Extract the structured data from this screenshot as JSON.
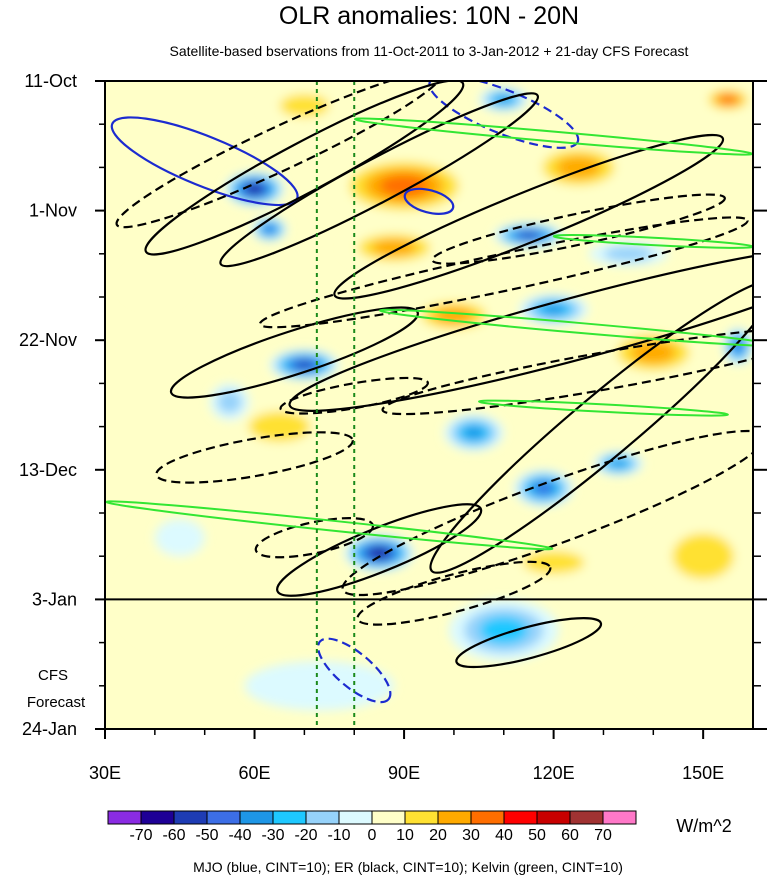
{
  "chart_data": {
    "type": "heatmap",
    "title": "OLR anomalies: 10N - 20N",
    "subtitle": "Satellite-based bservations from 11-Oct-2011 to 3-Jan-2012 + 21-day CFS Forecast",
    "x_ticks": [
      {
        "value": 30,
        "label": "30E"
      },
      {
        "value": 60,
        "label": "60E"
      },
      {
        "value": 90,
        "label": "90E"
      },
      {
        "value": 120,
        "label": "120E"
      },
      {
        "value": 150,
        "label": "150E"
      }
    ],
    "xlim": [
      30,
      160
    ],
    "y_ticks": [
      {
        "day": 0,
        "label": "11-Oct"
      },
      {
        "day": 21,
        "label": "1-Nov"
      },
      {
        "day": 42,
        "label": "22-Nov"
      },
      {
        "day": 63,
        "label": "13-Dec"
      },
      {
        "day": 84,
        "label": "3-Jan"
      },
      {
        "day": 105,
        "label": "24-Jan"
      }
    ],
    "ylim_days": [
      0,
      105
    ],
    "forecast_start_day": 84,
    "forecast_label": [
      "CFS",
      "Forecast"
    ],
    "reference_lons": [
      72.5,
      80
    ],
    "colorbar": {
      "labels": [
        "-70",
        "-60",
        "-50",
        "-40",
        "-30",
        "-20",
        "-10",
        "0",
        "10",
        "20",
        "30",
        "40",
        "50",
        "60",
        "70"
      ],
      "colors": [
        "#8a2be2",
        "#1e0096",
        "#1e3cb4",
        "#3c6ee6",
        "#1e96e6",
        "#1ec8ff",
        "#96d2fa",
        "#dcfaff",
        "#ffffc8",
        "#ffe132",
        "#ffaa00",
        "#ff6e00",
        "#ff0000",
        "#c80000",
        "#a03232",
        "#ff78c8"
      ],
      "units": "W/m^2"
    },
    "olr_features": [
      {
        "lon": 60,
        "day": 17.5,
        "rlon": 6,
        "rday": 2.8,
        "value": -70
      },
      {
        "lon": 63,
        "day": 24,
        "rlon": 3.5,
        "rday": 2,
        "value": -50
      },
      {
        "lon": 70,
        "day": 46,
        "rlon": 7,
        "rday": 2.5,
        "value": -60
      },
      {
        "lon": 85,
        "day": 76.5,
        "rlon": 7,
        "rday": 3,
        "value": -70
      },
      {
        "lon": 110,
        "day": 89,
        "rlon": 11,
        "rday": 5,
        "value": -30
      },
      {
        "lon": 115,
        "day": 25,
        "rlon": 7,
        "rday": 2,
        "value": -60
      },
      {
        "lon": 120,
        "day": 37,
        "rlon": 7,
        "rday": 2.5,
        "value": -40
      },
      {
        "lon": 110,
        "day": 3,
        "rlon": 5,
        "rday": 2,
        "value": -40
      },
      {
        "lon": 118,
        "day": 66,
        "rlon": 6,
        "rday": 3,
        "value": -50
      },
      {
        "lon": 133,
        "day": 62,
        "rlon": 5,
        "rday": 2,
        "value": -40
      },
      {
        "lon": 104,
        "day": 57,
        "rlon": 6,
        "rday": 3,
        "value": -40
      },
      {
        "lon": 157,
        "day": 43,
        "rlon": 3,
        "rday": 3,
        "value": -50
      },
      {
        "lon": 90,
        "day": 17,
        "rlon": 14,
        "rday": 5,
        "value": 40
      },
      {
        "lon": 88,
        "day": 27,
        "rlon": 10,
        "rday": 3,
        "value": 30
      },
      {
        "lon": 125,
        "day": 14,
        "rlon": 10,
        "rday": 4,
        "value": 30
      },
      {
        "lon": 100,
        "day": 38,
        "rlon": 9,
        "rday": 3,
        "value": 30
      },
      {
        "lon": 140,
        "day": 44,
        "rlon": 10,
        "rday": 4,
        "value": 30
      },
      {
        "lon": 65,
        "day": 56,
        "rlon": 10,
        "rday": 4,
        "value": 20
      },
      {
        "lon": 150,
        "day": 77,
        "rlon": 10,
        "rday": 6,
        "value": 20
      },
      {
        "lon": 120,
        "day": 78,
        "rlon": 10,
        "rday": 3,
        "value": 20
      },
      {
        "lon": 150,
        "day": 94,
        "rlon": 14,
        "rday": 8,
        "value": 10
      },
      {
        "lon": 45,
        "day": 84,
        "rlon": 12,
        "rday": 8,
        "value": 10
      },
      {
        "lon": 70,
        "day": 4,
        "rlon": 8,
        "rday": 3,
        "value": 20
      },
      {
        "lon": 155,
        "day": 3,
        "rlon": 5,
        "rday": 2,
        "value": 40
      },
      {
        "lon": 40,
        "day": 33,
        "rlon": 6,
        "rday": 3,
        "value": 10
      },
      {
        "lon": 55,
        "day": 52,
        "rlon": 4,
        "rday": 3,
        "value": -20
      },
      {
        "lon": 45,
        "day": 74,
        "rlon": 5,
        "rday": 3,
        "value": -10
      },
      {
        "lon": 73,
        "day": 98,
        "rlon": 15,
        "rday": 4,
        "value": -10
      },
      {
        "lon": 135,
        "day": 28,
        "rlon": 8,
        "rday": 2,
        "value": -20
      }
    ],
    "contours": [
      {
        "group": "MJO",
        "style": "solid",
        "lon": 50,
        "day": 13,
        "rlon": 20,
        "rday": 4,
        "angle": 22
      },
      {
        "group": "MJO",
        "style": "dashed",
        "lon": 110,
        "day": 5,
        "rlon": 16,
        "rday": 3.5,
        "angle": 22
      },
      {
        "group": "MJO",
        "style": "solid",
        "lon": 95,
        "day": 19.5,
        "rlon": 5,
        "rday": 1.8,
        "angle": 15
      },
      {
        "group": "MJO",
        "style": "dashed",
        "lon": 80,
        "day": 95.5,
        "rlon": 9,
        "rday": 2.8,
        "angle": 40
      },
      {
        "group": "ER",
        "style": "solid",
        "lon": 70,
        "day": 14,
        "rlon": 36,
        "rday": 4,
        "angle": -28
      },
      {
        "group": "ER",
        "style": "solid",
        "lon": 85,
        "day": 16,
        "rlon": 36,
        "rday": 3.5,
        "angle": -28
      },
      {
        "group": "ER",
        "style": "solid",
        "lon": 115,
        "day": 22,
        "rlon": 42,
        "rday": 4,
        "angle": -22
      },
      {
        "group": "ER",
        "style": "solid",
        "lon": 68,
        "day": 44,
        "rlon": 26,
        "rday": 3.5,
        "angle": -18
      },
      {
        "group": "ER",
        "style": "solid",
        "lon": 130,
        "day": 56,
        "rlon": 45,
        "rday": 5,
        "angle": -40
      },
      {
        "group": "ER",
        "style": "solid",
        "lon": 85,
        "day": 76,
        "rlon": 22,
        "rday": 3.5,
        "angle": -22
      },
      {
        "group": "ER",
        "style": "solid",
        "lon": 115,
        "day": 91,
        "rlon": 15,
        "rday": 2.5,
        "angle": -15
      },
      {
        "group": "ER",
        "style": "solid",
        "lon": 125,
        "day": 40,
        "rlon": 60,
        "rday": 5,
        "angle": -15
      },
      {
        "group": "ER",
        "style": "dashed",
        "lon": 65,
        "day": 11,
        "rlon": 36,
        "rday": 3.5,
        "angle": -25
      },
      {
        "group": "ER",
        "style": "dashed",
        "lon": 110,
        "day": 31,
        "rlon": 50,
        "rday": 3,
        "angle": -12
      },
      {
        "group": "ER",
        "style": "dashed",
        "lon": 80,
        "day": 51,
        "rlon": 15,
        "rday": 2,
        "angle": -10
      },
      {
        "group": "ER",
        "style": "dashed",
        "lon": 130,
        "day": 47,
        "rlon": 45,
        "rday": 3,
        "angle": -10
      },
      {
        "group": "ER",
        "style": "dashed",
        "lon": 72,
        "day": 74,
        "rlon": 12,
        "rday": 2.5,
        "angle": -12
      },
      {
        "group": "ER",
        "style": "dashed",
        "lon": 120,
        "day": 70,
        "rlon": 45,
        "rday": 5,
        "angle": -20
      },
      {
        "group": "ER",
        "style": "dashed",
        "lon": 100,
        "day": 83,
        "rlon": 20,
        "rday": 3,
        "angle": -15
      },
      {
        "group": "ER",
        "style": "dashed",
        "lon": 125,
        "day": 24,
        "rlon": 30,
        "rday": 2.5,
        "angle": -12
      },
      {
        "group": "ER",
        "style": "dashed",
        "lon": 60,
        "day": 61,
        "rlon": 20,
        "rday": 3,
        "angle": -10
      },
      {
        "group": "Kelvin",
        "style": "solid",
        "lon": 120,
        "day": 9,
        "rlon": 40,
        "rday": 0.8,
        "angle": 5
      },
      {
        "group": "Kelvin",
        "style": "solid",
        "lon": 125,
        "day": 40,
        "rlon": 40,
        "rday": 0.8,
        "angle": 5
      },
      {
        "group": "Kelvin",
        "style": "solid",
        "lon": 75,
        "day": 72,
        "rlon": 45,
        "rday": 0.8,
        "angle": 6
      },
      {
        "group": "Kelvin",
        "style": "solid",
        "lon": 130,
        "day": 53,
        "rlon": 25,
        "rday": 0.6,
        "angle": 3
      },
      {
        "group": "Kelvin",
        "style": "solid",
        "lon": 140,
        "day": 26,
        "rlon": 20,
        "rday": 0.6,
        "angle": 3
      }
    ],
    "contour_colors": {
      "MJO": "#1c2bd0",
      "ER": "#000000",
      "Kelvin": "#33e633"
    },
    "footnote": "MJO (blue, CINT=10); ER (black, CINT=10); Kelvin (green, CINT=10)"
  }
}
